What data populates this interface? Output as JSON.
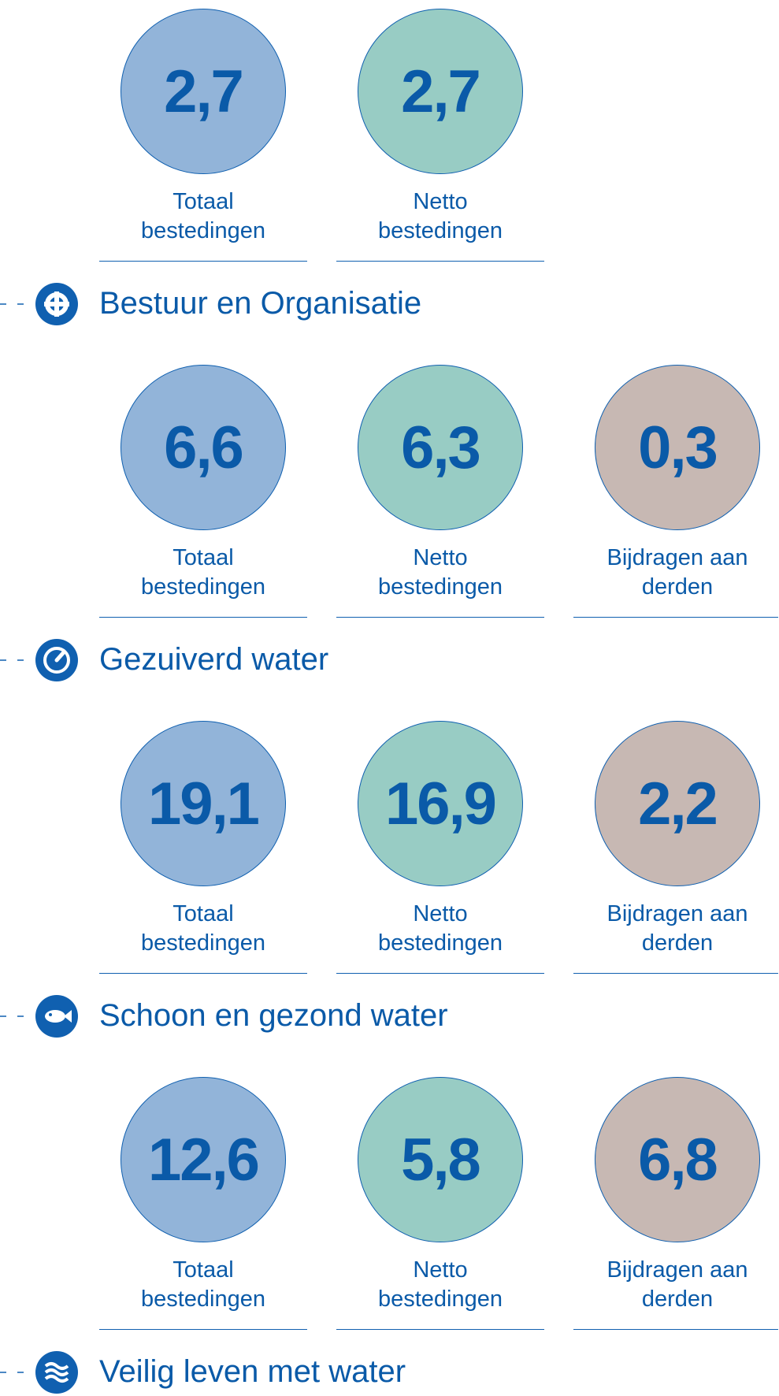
{
  "sections": [
    {
      "items": [
        {
          "value": "2,7",
          "label": [
            "Totaal",
            "bestedingen"
          ]
        },
        {
          "value": "2,7",
          "label": [
            "Netto",
            "bestedingen"
          ]
        }
      ]
    },
    {
      "title": "Bestuur en Organisatie",
      "items": [
        {
          "value": "6,6",
          "label": [
            "Totaal",
            "bestedingen"
          ]
        },
        {
          "value": "6,3",
          "label": [
            "Netto",
            "bestedingen"
          ]
        },
        {
          "value": "0,3",
          "label": [
            "Bijdragen aan",
            "derden"
          ]
        }
      ]
    },
    {
      "title": "Gezuiverd water",
      "items": [
        {
          "value": "19,1",
          "label": [
            "Totaal",
            "bestedingen"
          ]
        },
        {
          "value": "16,9",
          "label": [
            "Netto",
            "bestedingen"
          ]
        },
        {
          "value": "2,2",
          "label": [
            "Bijdragen aan",
            "derden"
          ]
        }
      ]
    },
    {
      "title": "Schoon en gezond water",
      "items": [
        {
          "value": "12,6",
          "label": [
            "Totaal",
            "bestedingen"
          ]
        },
        {
          "value": "5,8",
          "label": [
            "Netto",
            "bestedingen"
          ]
        },
        {
          "value": "6,8",
          "label": [
            "Bijdragen aan",
            "derden"
          ]
        }
      ]
    },
    {
      "title": "Veilig leven met water"
    }
  ]
}
